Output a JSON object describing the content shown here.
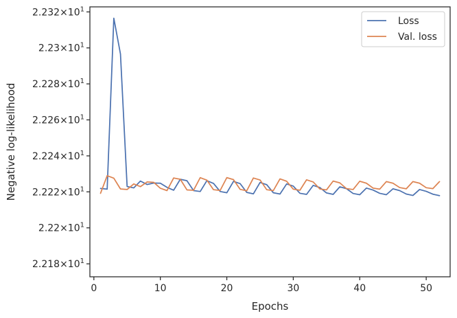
{
  "chart_data": {
    "type": "line",
    "title": "",
    "xlabel": "Epochs",
    "ylabel": "Negative log-likelihood",
    "xlim": [
      -0.6,
      53.6
    ],
    "ylim": [
      22.1728,
      22.3228
    ],
    "x_ticks": [
      0,
      10,
      20,
      30,
      40,
      50
    ],
    "x_tick_labels": [
      "0",
      "10",
      "20",
      "30",
      "40",
      "50"
    ],
    "y_ticks": [
      22.18,
      22.2,
      22.22,
      22.24,
      22.26,
      22.28,
      22.3,
      22.32
    ],
    "y_tick_mantissas": [
      "2.218",
      "2.22",
      "2.222",
      "2.224",
      "2.226",
      "2.228",
      "2.23",
      "2.232"
    ],
    "y_tick_base": "10",
    "y_tick_exp": "1",
    "y_tick_times": "×",
    "grid": false,
    "legend_position": "top-right",
    "x": [
      1,
      2,
      3,
      4,
      5,
      6,
      7,
      8,
      9,
      10,
      11,
      12,
      13,
      14,
      15,
      16,
      17,
      18,
      19,
      20,
      21,
      22,
      23,
      24,
      25,
      26,
      27,
      28,
      29,
      30,
      31,
      32,
      33,
      34,
      35,
      36,
      37,
      38,
      39,
      40,
      41,
      42,
      43,
      44,
      45,
      46,
      47,
      48,
      49,
      50,
      51,
      52
    ],
    "series": [
      {
        "name": "Loss",
        "color": "#4c72b0",
        "values": [
          22.2219,
          22.2215,
          22.3165,
          22.2966,
          22.223,
          22.2222,
          22.226,
          22.2241,
          22.2249,
          22.2248,
          22.2225,
          22.2209,
          22.227,
          22.2262,
          22.2207,
          22.2202,
          22.2262,
          22.2247,
          22.2202,
          22.2195,
          22.2258,
          22.2246,
          22.2197,
          22.2189,
          22.2252,
          22.224,
          22.2195,
          22.2188,
          22.2244,
          22.2232,
          22.2192,
          22.2186,
          22.2236,
          22.2224,
          22.2194,
          22.2186,
          22.2228,
          22.2218,
          22.2191,
          22.2184,
          22.2221,
          22.221,
          22.2192,
          22.2184,
          22.2217,
          22.2207,
          22.2188,
          22.218,
          22.2213,
          22.2203,
          22.2187,
          22.2179
        ]
      },
      {
        "name": "Val. loss",
        "color": "#dd8452",
        "values": [
          22.2192,
          22.229,
          22.2276,
          22.2216,
          22.2213,
          22.2244,
          22.2229,
          22.2255,
          22.2253,
          22.222,
          22.2207,
          22.2277,
          22.227,
          22.2211,
          22.2209,
          22.2279,
          22.2265,
          22.2212,
          22.2208,
          22.2279,
          22.2268,
          22.2214,
          22.2206,
          22.2277,
          22.2266,
          22.2212,
          22.2207,
          22.2272,
          22.2259,
          22.2215,
          22.2209,
          22.2267,
          22.2255,
          22.2216,
          22.2211,
          22.226,
          22.225,
          22.2218,
          22.2213,
          22.2259,
          22.2248,
          22.2221,
          22.2215,
          22.2257,
          22.2248,
          22.2224,
          22.2217,
          22.2257,
          22.2248,
          22.2223,
          22.2218,
          22.2257
        ]
      }
    ]
  }
}
